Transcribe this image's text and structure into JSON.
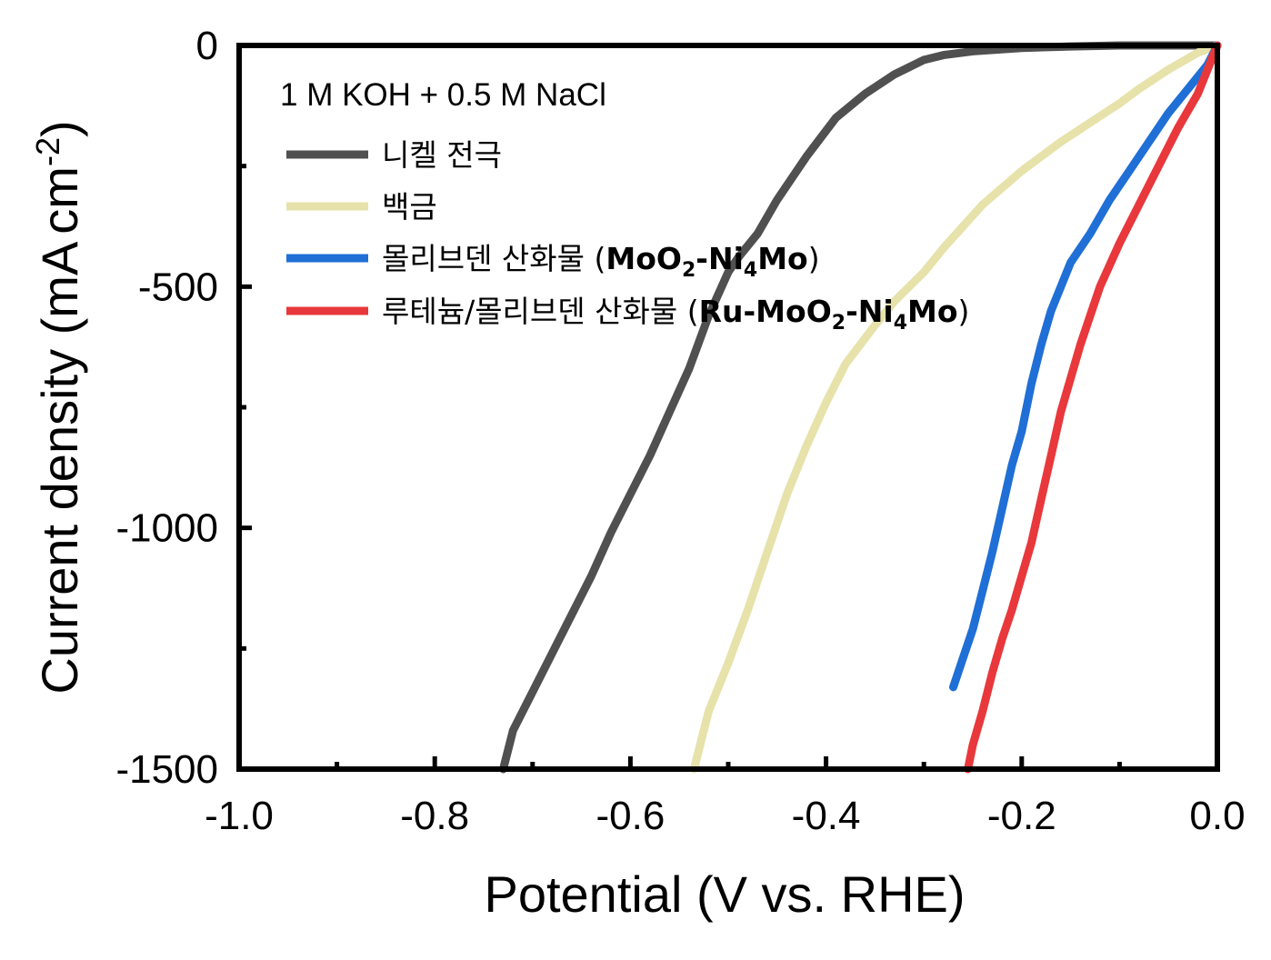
{
  "chart_data": {
    "type": "line",
    "title": "",
    "xlabel": "Potential (V vs. RHE)",
    "ylabel": "Current density (mA cm-2)",
    "ylabel_parts": {
      "main": "Current density (mA",
      "unit": "cm",
      "exp": "-2",
      "close": ")"
    },
    "xlim": [
      -1.0,
      0.0
    ],
    "ylim": [
      -1500,
      0
    ],
    "x_ticks": [
      -1.0,
      -0.8,
      -0.6,
      -0.4,
      -0.2,
      0.0
    ],
    "x_tick_labels": [
      "-1.0",
      "-0.8",
      "-0.6",
      "-0.4",
      "-0.2",
      "0.0"
    ],
    "y_ticks": [
      0,
      -500,
      -1000,
      -1500
    ],
    "y_tick_labels": [
      "0",
      "-500",
      "-1000",
      "-1500"
    ],
    "grid": false,
    "legend_placement": "top-left",
    "legend_title": "1 M KOH + 0.5 M NaCl",
    "series": [
      {
        "name": "니켈 전극",
        "label_parts": [
          {
            "text": "니켈 전극",
            "style": "normal"
          }
        ],
        "color": "#505050",
        "x": [
          0.0,
          -0.05,
          -0.1,
          -0.15,
          -0.2,
          -0.25,
          -0.28,
          -0.3,
          -0.33,
          -0.36,
          -0.39,
          -0.42,
          -0.45,
          -0.47,
          -0.49,
          -0.5,
          -0.52,
          -0.54,
          -0.56,
          -0.58,
          -0.6,
          -0.62,
          -0.64,
          -0.66,
          -0.68,
          -0.7,
          -0.72,
          -0.73
        ],
        "y": [
          0,
          0,
          0,
          -2,
          -5,
          -12,
          -20,
          -30,
          -60,
          -100,
          -150,
          -230,
          -320,
          -390,
          -440,
          -470,
          -560,
          -670,
          -760,
          -850,
          -930,
          -1010,
          -1100,
          -1180,
          -1260,
          -1340,
          -1420,
          -1500
        ]
      },
      {
        "name": "백금",
        "label_parts": [
          {
            "text": "백금",
            "style": "normal"
          }
        ],
        "color": "#e6e2aa",
        "x": [
          0.0,
          -0.02,
          -0.05,
          -0.08,
          -0.1,
          -0.13,
          -0.16,
          -0.2,
          -0.24,
          -0.28,
          -0.3,
          -0.33,
          -0.35,
          -0.38,
          -0.4,
          -0.42,
          -0.44,
          -0.46,
          -0.48,
          -0.5,
          -0.52,
          -0.535
        ],
        "y": [
          0,
          -15,
          -50,
          -90,
          -120,
          -160,
          -200,
          -260,
          -330,
          -420,
          -470,
          -530,
          -580,
          -660,
          -740,
          -830,
          -930,
          -1050,
          -1170,
          -1280,
          -1380,
          -1500
        ]
      },
      {
        "name": "몰리브덴 산화물 (MoO2-Ni4Mo)",
        "label_parts": [
          {
            "text": "몰리브덴 산화물 (",
            "style": "normal"
          },
          {
            "text": "MoO",
            "style": "bold"
          },
          {
            "text": "2",
            "style": "bold-sub"
          },
          {
            "text": "-Ni",
            "style": "bold"
          },
          {
            "text": "4",
            "style": "bold-sub"
          },
          {
            "text": "Mo",
            "style": "bold"
          },
          {
            "text": ")",
            "style": "normal"
          }
        ],
        "color": "#1f6fd6",
        "x": [
          0.0,
          -0.01,
          -0.03,
          -0.05,
          -0.07,
          -0.09,
          -0.11,
          -0.13,
          -0.15,
          -0.17,
          -0.18,
          -0.19,
          -0.2,
          -0.21,
          -0.22,
          -0.23,
          -0.24,
          -0.25,
          -0.26,
          -0.27
        ],
        "y": [
          0,
          -40,
          -90,
          -140,
          -200,
          -260,
          -320,
          -390,
          -450,
          -550,
          -620,
          -700,
          -800,
          -870,
          -960,
          -1050,
          -1130,
          -1210,
          -1270,
          -1330
        ]
      },
      {
        "name": "루테늄/몰리브덴 산화물 (Ru-MoO2-Ni4Mo)",
        "label_parts": [
          {
            "text": "루테늄/몰리브덴 산화물 (",
            "style": "normal"
          },
          {
            "text": "Ru-MoO",
            "style": "bold"
          },
          {
            "text": "2",
            "style": "bold-sub"
          },
          {
            "text": "-Ni",
            "style": "bold"
          },
          {
            "text": "4",
            "style": "bold-sub"
          },
          {
            "text": "Mo",
            "style": "bold"
          },
          {
            "text": ")",
            "style": "normal"
          }
        ],
        "color": "#e8383c",
        "x": [
          0.0,
          -0.01,
          -0.02,
          -0.04,
          -0.06,
          -0.08,
          -0.1,
          -0.12,
          -0.14,
          -0.16,
          -0.17,
          -0.18,
          -0.19,
          -0.2,
          -0.21,
          -0.22,
          -0.23,
          -0.24,
          -0.25,
          -0.255
        ],
        "y": [
          0,
          -50,
          -100,
          -170,
          -250,
          -330,
          -410,
          -500,
          -620,
          -760,
          -850,
          -940,
          -1030,
          -1100,
          -1170,
          -1230,
          -1300,
          -1380,
          -1450,
          -1500
        ]
      }
    ]
  }
}
